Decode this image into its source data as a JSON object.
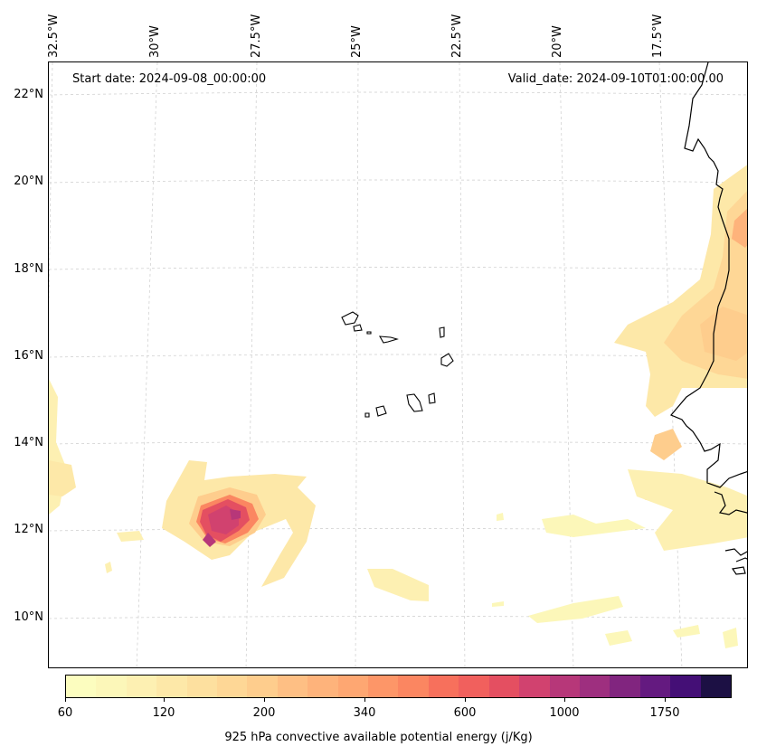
{
  "map": {
    "start_date_text": "Start date: 2024-09-08_00:00:00",
    "valid_date_text": "Valid_date: 2024-09-10T01:00:00.00",
    "lon_labels": [
      "32.5°W",
      "30°W",
      "27.5°W",
      "25°W",
      "22.5°W",
      "20°W",
      "17.5°W"
    ],
    "lat_labels": [
      "22°N",
      "20°N",
      "18°N",
      "16°N",
      "14°N",
      "12°N",
      "10°N"
    ],
    "gridlines": true,
    "coastline_color": "#000000",
    "regions": [
      "Cabo Verde islands",
      "West African coast"
    ]
  },
  "colorbar": {
    "title": "925 hPa convective available potential energy (j/Kg)",
    "tick_labels": [
      "60",
      "120",
      "200",
      "340",
      "600",
      "1000",
      "1750"
    ],
    "colors": [
      "#fcfdbf",
      "#fcf7b9",
      "#fdf0b2",
      "#fde8a8",
      "#fde09f",
      "#fed796",
      "#fecd8d",
      "#febf84",
      "#feb37b",
      "#fea772",
      "#fd9668",
      "#fb8661",
      "#f7705c",
      "#f1605d",
      "#e44f61",
      "#d1426f",
      "#b73779",
      "#9e2f7f",
      "#81257f",
      "#641a80",
      "#440f76",
      "#1c1044"
    ],
    "colormap": "magma_r"
  }
}
